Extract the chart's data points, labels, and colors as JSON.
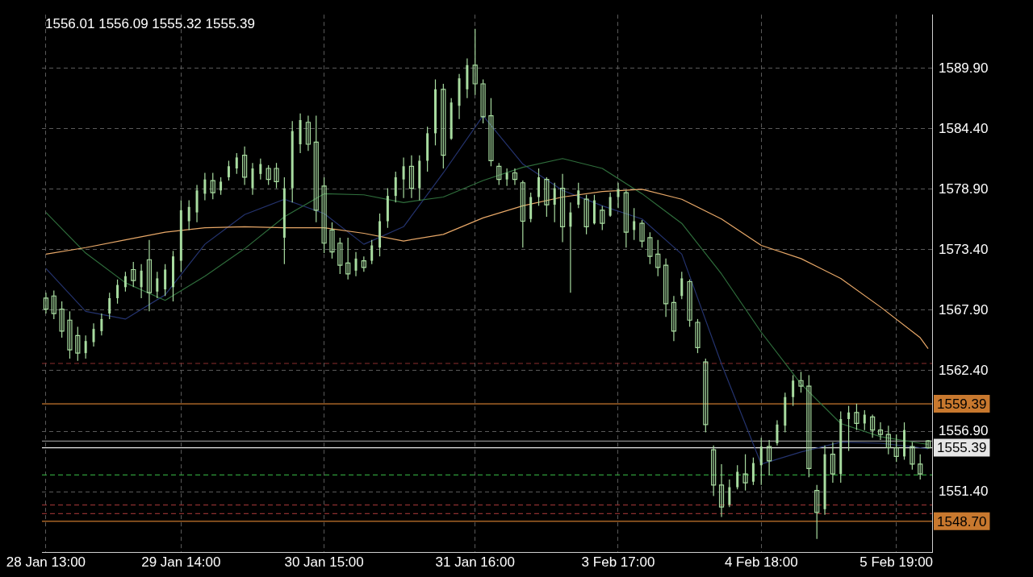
{
  "chart_data": {
    "type": "candlestick",
    "color": "#a8dca0",
    "annotations": [
      "1556.01 1556.09 1555.32 1555.39"
    ],
    "categories": [
      "28 Jan 13:00",
      null,
      null,
      null,
      null,
      null,
      null,
      null,
      null,
      null,
      null,
      null,
      null,
      null,
      null,
      null,
      null,
      "29 Jan 14:00",
      null,
      null,
      null,
      null,
      null,
      null,
      null,
      null,
      null,
      null,
      null,
      null,
      null,
      null,
      null,
      null,
      null,
      "30 Jan 15:00",
      null,
      null,
      null,
      null,
      null,
      null,
      null,
      null,
      null,
      null,
      null,
      null,
      null,
      null,
      null,
      null,
      null,
      null,
      "31 Jan 16:00",
      null,
      null,
      null,
      null,
      null,
      null,
      null,
      null,
      null,
      null,
      null,
      null,
      null,
      null,
      null,
      null,
      null,
      "3 Feb 17:00",
      null,
      null,
      null,
      null,
      null,
      null,
      null,
      null,
      null,
      null,
      null,
      null,
      null,
      null,
      null,
      null,
      null,
      "4 Feb 18:00",
      null,
      null,
      null,
      null,
      null,
      null,
      null,
      null,
      null,
      null,
      null,
      null,
      null,
      null,
      null,
      null,
      "5 Feb 19:00",
      null,
      null,
      null,
      null
    ],
    "ohlc": [
      [
        1569.0,
        1569.5,
        1567.6,
        1568.0
      ],
      [
        1569.2,
        1569.7,
        1567.1,
        1567.6
      ],
      [
        1568.0,
        1568.7,
        1565.4,
        1566.0
      ],
      [
        1567.0,
        1567.8,
        1563.5,
        1564.3
      ],
      [
        1565.6,
        1566.4,
        1563.3,
        1564.0
      ],
      [
        1564.0,
        1565.6,
        1563.5,
        1565.1
      ],
      [
        1565.0,
        1566.7,
        1564.6,
        1566.2
      ],
      [
        1566.0,
        1567.6,
        1565.6,
        1567.1
      ],
      [
        1567.6,
        1569.5,
        1567.1,
        1569.0
      ],
      [
        1569.0,
        1570.7,
        1568.5,
        1570.2
      ],
      [
        1570.0,
        1571.4,
        1569.6,
        1571.0
      ],
      [
        1571.6,
        1572.3,
        1570.0,
        1570.6
      ],
      [
        1570.0,
        1572.1,
        1569.0,
        1571.5
      ],
      [
        1572.5,
        1574.3,
        1567.8,
        1569.5
      ],
      [
        1569.6,
        1571.4,
        1569.0,
        1570.8
      ],
      [
        1569.8,
        1572.1,
        1569.2,
        1571.6
      ],
      [
        1570.0,
        1573.3,
        1568.7,
        1572.8
      ],
      [
        1572.4,
        1577.9,
        1571.4,
        1577.0
      ],
      [
        1576.0,
        1577.9,
        1575.2,
        1577.3
      ],
      [
        1576.8,
        1579.3,
        1575.9,
        1578.8
      ],
      [
        1578.5,
        1580.4,
        1577.9,
        1579.8
      ],
      [
        1579.7,
        1580.4,
        1578.0,
        1578.6
      ],
      [
        1578.8,
        1580.0,
        1578.4,
        1579.6
      ],
      [
        1580.0,
        1581.5,
        1579.7,
        1581.0
      ],
      [
        1580.8,
        1582.2,
        1580.3,
        1581.8
      ],
      [
        1582.0,
        1582.8,
        1579.3,
        1580.0
      ],
      [
        1579.0,
        1581.3,
        1578.4,
        1580.8
      ],
      [
        1580.3,
        1581.7,
        1579.8,
        1581.2
      ],
      [
        1580.8,
        1581.1,
        1579.3,
        1579.8
      ],
      [
        1580.8,
        1581.3,
        1579.0,
        1579.6
      ],
      [
        1574.5,
        1580.0,
        1572.1,
        1579.0
      ],
      [
        1579.0,
        1585.1,
        1577.7,
        1584.2
      ],
      [
        1583.0,
        1585.8,
        1582.2,
        1585.2
      ],
      [
        1585.0,
        1585.6,
        1582.4,
        1583.0
      ],
      [
        1583.2,
        1585.6,
        1575.9,
        1577.0
      ],
      [
        1579.2,
        1580.0,
        1573.1,
        1574.0
      ],
      [
        1575.2,
        1575.9,
        1572.6,
        1573.2
      ],
      [
        1574.0,
        1574.5,
        1571.2,
        1572.0
      ],
      [
        1572.2,
        1574.5,
        1570.7,
        1571.2
      ],
      [
        1571.5,
        1573.2,
        1571.0,
        1572.6
      ],
      [
        1572.4,
        1572.8,
        1571.4,
        1571.8
      ],
      [
        1572.4,
        1574.3,
        1572.1,
        1573.8
      ],
      [
        1573.6,
        1576.7,
        1572.8,
        1576.0
      ],
      [
        1576.0,
        1579.0,
        1575.4,
        1578.3
      ],
      [
        1578.3,
        1580.5,
        1577.7,
        1580.0
      ],
      [
        1579.8,
        1581.8,
        1578.1,
        1581.0
      ],
      [
        1581.0,
        1582.0,
        1578.1,
        1579.0
      ],
      [
        1579.0,
        1582.0,
        1577.9,
        1581.5
      ],
      [
        1581.5,
        1584.6,
        1580.5,
        1584.0
      ],
      [
        1584.0,
        1588.9,
        1582.9,
        1588.0
      ],
      [
        1588.0,
        1588.5,
        1580.8,
        1582.0
      ],
      [
        1583.5,
        1587.2,
        1583.4,
        1586.8
      ],
      [
        1586.5,
        1589.4,
        1585.3,
        1589.0
      ],
      [
        1588.0,
        1590.8,
        1587.2,
        1590.2
      ],
      [
        1590.2,
        1593.5,
        1587.5,
        1588.5
      ],
      [
        1588.5,
        1588.9,
        1584.9,
        1585.5
      ],
      [
        1585.6,
        1587.2,
        1581.0,
        1581.5
      ],
      [
        1581.0,
        1581.3,
        1579.3,
        1579.8
      ],
      [
        1579.8,
        1580.8,
        1579.2,
        1580.4
      ],
      [
        1580.4,
        1580.8,
        1579.3,
        1579.8
      ],
      [
        1579.5,
        1579.7,
        1573.6,
        1576.0
      ],
      [
        1576.2,
        1578.6,
        1575.9,
        1578.2
      ],
      [
        1578.2,
        1580.8,
        1577.4,
        1580.0
      ],
      [
        1579.8,
        1580.0,
        1576.4,
        1577.5
      ],
      [
        1577.5,
        1579.5,
        1575.9,
        1579.0
      ],
      [
        1579.0,
        1580.3,
        1574.1,
        1575.5
      ],
      [
        1575.5,
        1577.7,
        1569.5,
        1576.8
      ],
      [
        1577.5,
        1579.5,
        1577.2,
        1578.8
      ],
      [
        1578.0,
        1578.4,
        1574.8,
        1575.5
      ],
      [
        1575.8,
        1578.4,
        1575.7,
        1577.9
      ],
      [
        1577.0,
        1577.4,
        1575.2,
        1575.8
      ],
      [
        1576.5,
        1578.6,
        1576.4,
        1578.2
      ],
      [
        1578.2,
        1579.5,
        1577.2,
        1578.9
      ],
      [
        1578.6,
        1578.8,
        1573.6,
        1575.0
      ],
      [
        1575.2,
        1577.2,
        1574.3,
        1576.0
      ],
      [
        1575.8,
        1576.1,
        1573.6,
        1574.2
      ],
      [
        1574.5,
        1575.0,
        1572.1,
        1572.8
      ],
      [
        1573.0,
        1574.3,
        1571.0,
        1571.8
      ],
      [
        1572.0,
        1572.6,
        1567.3,
        1568.5
      ],
      [
        1568.6,
        1569.2,
        1565.1,
        1566.0
      ],
      [
        1569.2,
        1571.4,
        1568.9,
        1570.8
      ],
      [
        1570.5,
        1570.7,
        1566.4,
        1567.0
      ],
      [
        1566.8,
        1567.1,
        1564.0,
        1564.5
      ],
      [
        1563.2,
        1563.5,
        1556.8,
        1557.5
      ],
      [
        1555.2,
        1555.6,
        1551.0,
        1552.0
      ],
      [
        1552.0,
        1553.9,
        1549.1,
        1550.0
      ],
      [
        1550.2,
        1552.5,
        1550.0,
        1551.8
      ],
      [
        1551.8,
        1553.8,
        1551.6,
        1553.2
      ],
      [
        1553.0,
        1554.8,
        1551.5,
        1552.2
      ],
      [
        1552.3,
        1554.5,
        1552.0,
        1554.0
      ],
      [
        1553.8,
        1556.3,
        1552.0,
        1555.5
      ],
      [
        1555.5,
        1556.1,
        1552.9,
        1554.2
      ],
      [
        1555.8,
        1557.9,
        1555.6,
        1557.5
      ],
      [
        1557.4,
        1560.4,
        1556.8,
        1560.0
      ],
      [
        1560.0,
        1562.0,
        1559.2,
        1561.5
      ],
      [
        1561.5,
        1562.3,
        1560.4,
        1561.0
      ],
      [
        1561.0,
        1562.0,
        1552.7,
        1553.5
      ],
      [
        1551.5,
        1552.0,
        1547.1,
        1549.5
      ],
      [
        1549.8,
        1555.6,
        1549.3,
        1554.8
      ],
      [
        1554.8,
        1555.9,
        1552.2,
        1553.0
      ],
      [
        1553.0,
        1558.7,
        1552.2,
        1558.0
      ],
      [
        1558.0,
        1559.2,
        1555.1,
        1558.6
      ],
      [
        1558.6,
        1559.4,
        1557.0,
        1557.6
      ],
      [
        1557.6,
        1558.8,
        1557.0,
        1558.4
      ],
      [
        1558.2,
        1558.4,
        1556.3,
        1557.0
      ],
      [
        1557.0,
        1557.7,
        1556.1,
        1556.6
      ],
      [
        1556.6,
        1557.4,
        1554.8,
        1555.4
      ],
      [
        1555.4,
        1556.6,
        1554.1,
        1554.6
      ],
      [
        1554.6,
        1557.7,
        1554.3,
        1557.0
      ],
      [
        1555.5,
        1555.9,
        1553.4,
        1553.9
      ],
      [
        1553.9,
        1554.8,
        1552.5,
        1553.0
      ],
      [
        1556.01,
        1556.09,
        1555.32,
        1555.39
      ]
    ],
    "series": [
      {
        "type": "line",
        "color": "#e8a868",
        "values": [
          1573.0,
          null,
          null,
          null,
          null,
          1573.6,
          null,
          null,
          null,
          null,
          1574.3,
          null,
          null,
          null,
          null,
          1575.0,
          null,
          null,
          null,
          null,
          1575.4,
          null,
          null,
          null,
          null,
          1575.5,
          null,
          null,
          null,
          null,
          1575.4,
          null,
          null,
          null,
          null,
          1575.4,
          null,
          null,
          null,
          null,
          1574.9,
          null,
          null,
          null,
          null,
          1574.2,
          null,
          null,
          null,
          null,
          1574.8,
          null,
          null,
          null,
          null,
          1576.3,
          null,
          null,
          null,
          null,
          1577.4,
          null,
          null,
          null,
          null,
          1578.2,
          null,
          null,
          null,
          null,
          1578.7,
          null,
          null,
          null,
          null,
          1578.9,
          null,
          null,
          null,
          null,
          1578.0,
          null,
          null,
          null,
          null,
          1576.2,
          null,
          null,
          null,
          null,
          1573.8,
          null,
          null,
          null,
          null,
          1572.6,
          null,
          null,
          null,
          null,
          1570.8,
          null,
          null,
          null,
          null,
          1568.2,
          null,
          null,
          null,
          null,
          1565.4,
          1564.4
        ]
      },
      {
        "type": "line",
        "color": "#2f6e3c",
        "values": [
          1576.8,
          null,
          null,
          null,
          null,
          1573.1,
          null,
          null,
          null,
          null,
          1570.4,
          null,
          null,
          null,
          null,
          1568.8,
          null,
          null,
          null,
          null,
          1571.0,
          null,
          null,
          null,
          null,
          1573.5,
          null,
          null,
          null,
          null,
          1576.4,
          null,
          null,
          null,
          null,
          1578.5,
          null,
          null,
          null,
          null,
          1578.4,
          null,
          null,
          null,
          null,
          1577.7,
          null,
          null,
          null,
          null,
          1578.2,
          null,
          null,
          null,
          null,
          1579.7,
          null,
          null,
          null,
          null,
          1580.9,
          null,
          null,
          null,
          null,
          1581.7,
          null,
          null,
          null,
          null,
          1580.8,
          null,
          null,
          null,
          null,
          1578.5,
          null,
          null,
          null,
          null,
          1575.8,
          null,
          null,
          null,
          null,
          1571.2,
          null,
          null,
          null,
          null,
          1565.9,
          null,
          null,
          null,
          null,
          1561.2,
          null,
          null,
          null,
          null,
          1557.6,
          null,
          null,
          null,
          null,
          1556.4,
          null,
          null,
          null,
          null,
          1555.8,
          1555.7
        ]
      },
      {
        "type": "line",
        "color": "#24336e",
        "values": [
          1571.7,
          null,
          null,
          null,
          null,
          1567.8,
          null,
          null,
          null,
          null,
          1567.1,
          null,
          null,
          null,
          null,
          1569.3,
          null,
          null,
          null,
          null,
          1573.9,
          null,
          null,
          null,
          null,
          1576.6,
          null,
          null,
          null,
          null,
          1578.0,
          null,
          null,
          null,
          null,
          1576.7,
          null,
          null,
          null,
          null,
          1573.9,
          null,
          null,
          null,
          null,
          1575.5,
          null,
          null,
          null,
          null,
          1580.4,
          null,
          null,
          null,
          null,
          1585.6,
          null,
          null,
          null,
          null,
          1581.2,
          null,
          null,
          null,
          null,
          1578.8,
          null,
          null,
          null,
          null,
          1577.4,
          null,
          null,
          null,
          null,
          1576.2,
          null,
          null,
          null,
          null,
          1573.0,
          null,
          null,
          null,
          null,
          1563.0,
          null,
          null,
          null,
          null,
          1553.9,
          null,
          null,
          null,
          null,
          1555.0,
          null,
          null,
          null,
          null,
          1555.9,
          null,
          null,
          null,
          null,
          1555.8,
          null,
          null,
          null,
          null,
          1555.4,
          1555.3
        ]
      }
    ],
    "ylim": [
      1545.86,
      1594.79
    ],
    "yticks": [
      {
        "value": 1551.4,
        "label": "1551.40"
      },
      {
        "value": 1556.9,
        "label": "1556.90"
      },
      {
        "value": 1562.4,
        "label": "1562.40"
      },
      {
        "value": 1567.9,
        "label": "1567.90"
      },
      {
        "value": 1573.4,
        "label": "1573.40"
      },
      {
        "value": 1578.9,
        "label": "1578.90"
      },
      {
        "value": 1584.4,
        "label": "1584.40"
      },
      {
        "value": 1589.9,
        "label": "1589.90"
      }
    ],
    "ref_lines": [
      {
        "axis": "y",
        "value": 1563.06,
        "color": "#8b2f2f",
        "line_style": "dashed"
      },
      {
        "axis": "y",
        "value": 1559.39,
        "label": "1559.39",
        "color": "#c8782e",
        "line_style": "solid"
      },
      {
        "axis": "y",
        "value": 1556.0,
        "color": "#8a8a8a",
        "line_style": "solid"
      },
      {
        "axis": "y",
        "value": 1555.39,
        "label": "1555.39",
        "color": "#e6e6e6",
        "line_style": "solid"
      },
      {
        "axis": "y",
        "value": 1552.91,
        "color": "#2f9a3a",
        "line_style": "dashed"
      },
      {
        "axis": "y",
        "value": 1550.18,
        "color": "#8b2f2f",
        "line_style": "dashed"
      },
      {
        "axis": "y",
        "value": 1549.39,
        "color": "#8b2f2f",
        "line_style": "dashed"
      },
      {
        "axis": "y",
        "value": 1548.7,
        "label": "1548.70",
        "color": "#c8782e",
        "line_style": "solid"
      }
    ],
    "grid": true,
    "legend": false,
    "marker": "none",
    "line_style": "solid"
  }
}
